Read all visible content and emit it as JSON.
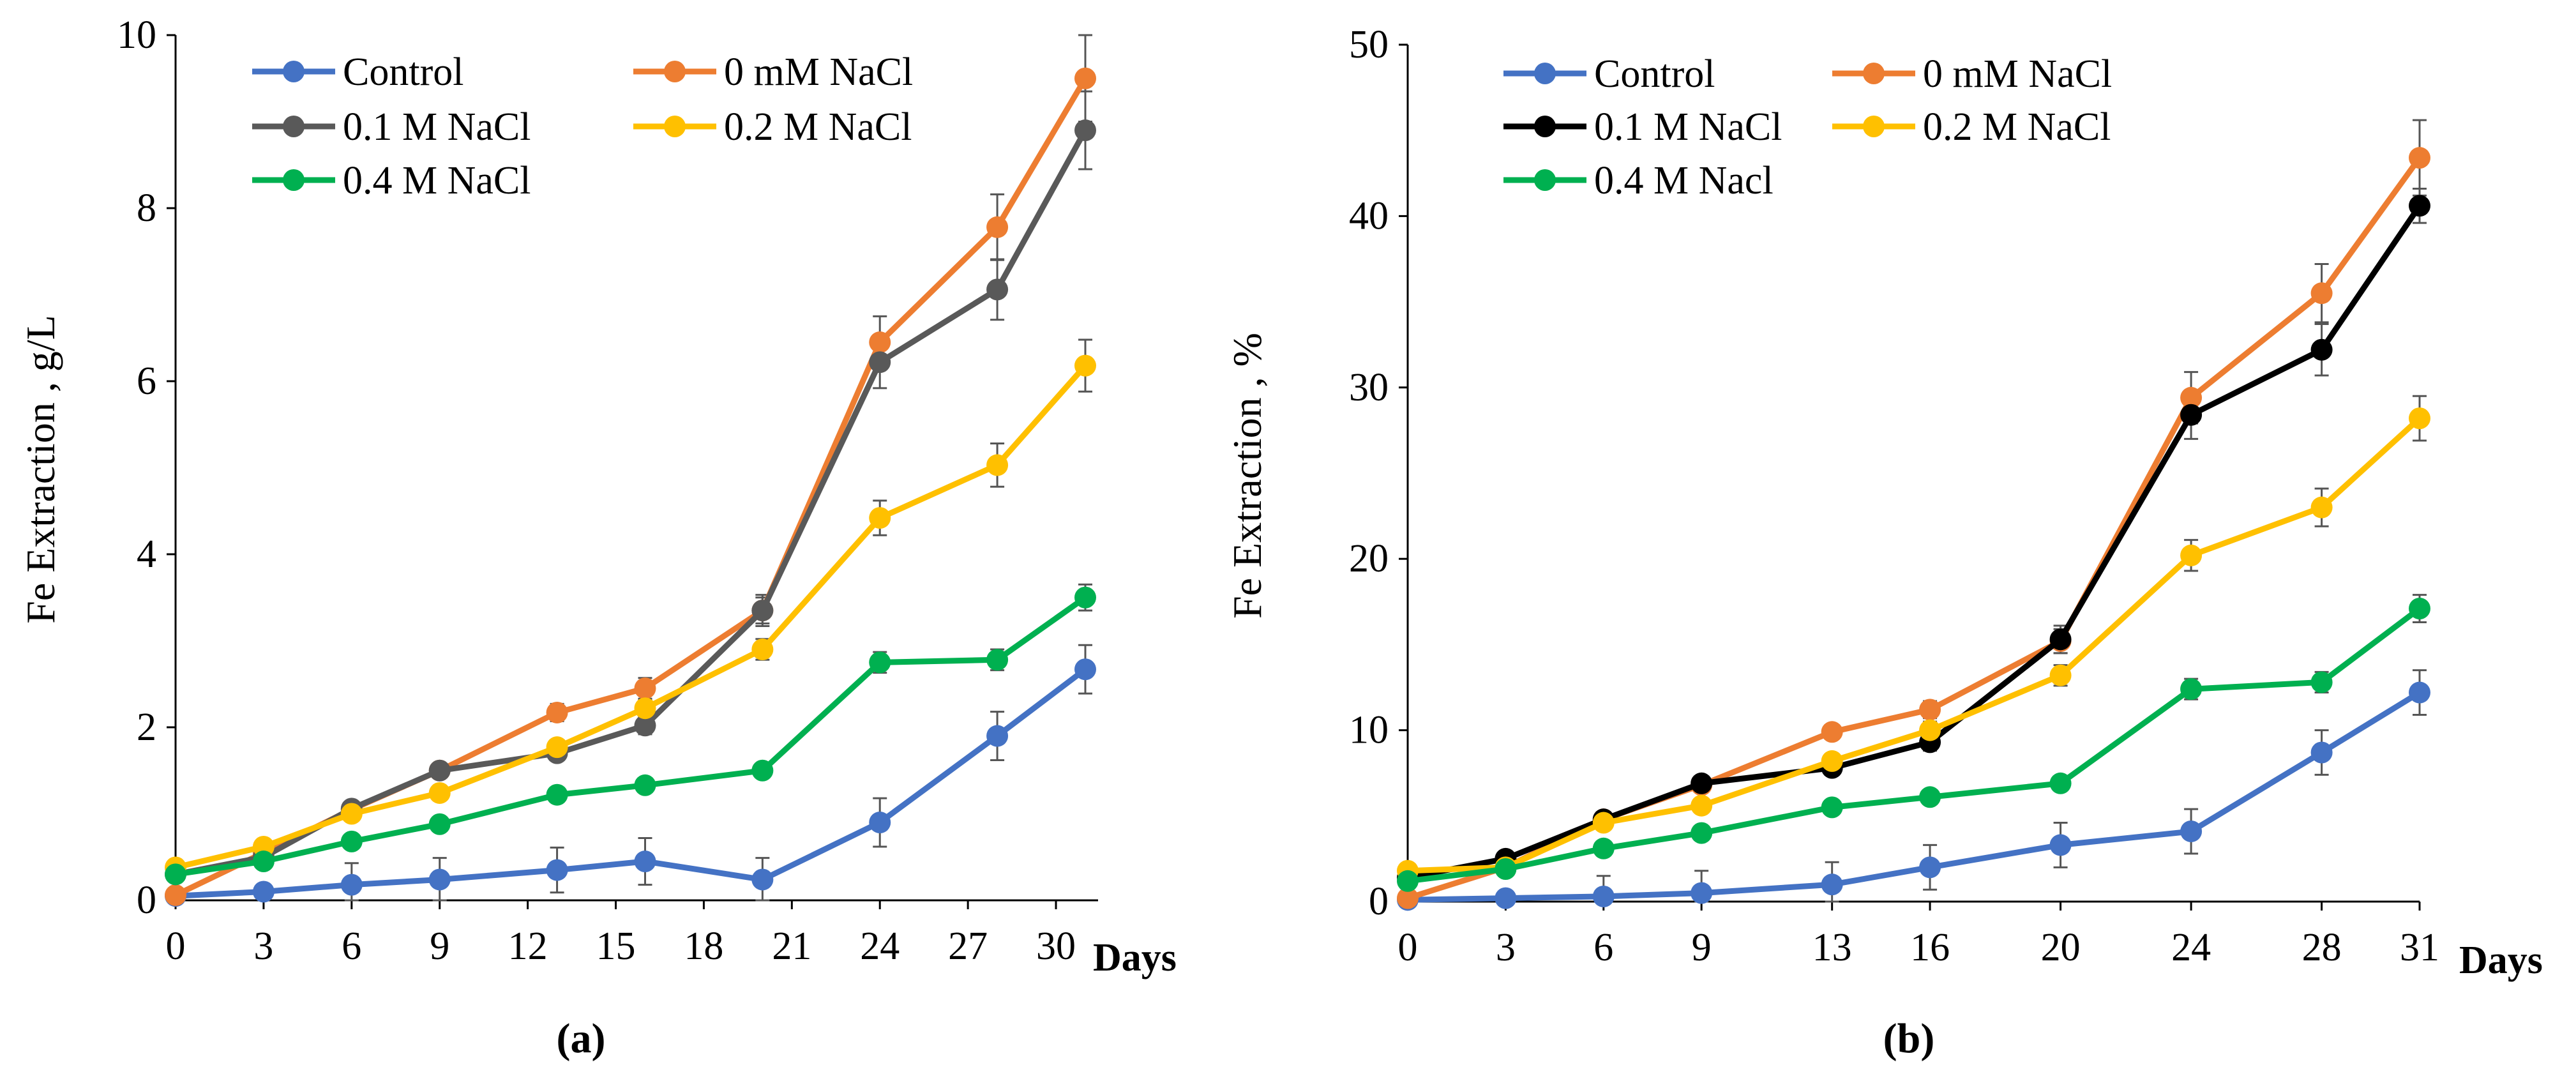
{
  "chart_data": [
    {
      "type": "line",
      "title": "",
      "panel_label": "(a)",
      "xlabel": "Days",
      "ylabel": "Fe Extraction , g/L",
      "xlim": [
        0,
        31
      ],
      "ylim": [
        0,
        10
      ],
      "xticks": [
        0,
        3,
        6,
        9,
        12,
        15,
        18,
        21,
        24,
        27,
        30
      ],
      "yticks": [
        0,
        2,
        4,
        6,
        8,
        10
      ],
      "x": [
        0,
        3,
        6,
        9,
        13,
        16,
        20,
        24,
        28,
        31
      ],
      "grid": false,
      "legend_position": "top-left",
      "series": [
        {
          "name": "Control",
          "color": "#4472C4",
          "values": [
            0.05,
            0.1,
            0.18,
            0.24,
            0.35,
            0.45,
            0.24,
            0.9,
            1.9,
            2.67
          ],
          "errors": [
            0.05,
            0.05,
            0.25,
            0.25,
            0.26,
            0.27,
            0.25,
            0.28,
            0.28,
            0.28
          ]
        },
        {
          "name": "0 mM NaCl",
          "color": "#ED7D31",
          "values": [
            0.06,
            0.55,
            1.05,
            1.5,
            2.17,
            2.45,
            3.35,
            6.45,
            7.78,
            9.5
          ],
          "errors": [
            0.05,
            0.06,
            0.06,
            0.07,
            0.1,
            0.12,
            0.15,
            0.3,
            0.38,
            0.5
          ]
        },
        {
          "name": "0.1 M NaCl",
          "color": "#595959",
          "values": [
            0.3,
            0.5,
            1.06,
            1.5,
            1.7,
            2.02,
            3.35,
            6.22,
            7.06,
            8.9
          ],
          "errors": [
            0.05,
            0.06,
            0.06,
            0.07,
            0.08,
            0.1,
            0.18,
            0.3,
            0.35,
            0.45
          ]
        },
        {
          "name": "0.2 M NaCl",
          "color": "#FFC000",
          "values": [
            0.38,
            0.62,
            1.0,
            1.24,
            1.77,
            2.22,
            2.9,
            4.42,
            5.03,
            6.18
          ],
          "errors": [
            0.05,
            0.05,
            0.06,
            0.06,
            0.08,
            0.1,
            0.12,
            0.2,
            0.25,
            0.3
          ]
        },
        {
          "name": "0.4 M NaCl",
          "color": "#00B050",
          "values": [
            0.3,
            0.45,
            0.68,
            0.88,
            1.22,
            1.33,
            1.5,
            2.75,
            2.78,
            3.5
          ],
          "errors": [
            0.05,
            0.05,
            0.06,
            0.06,
            0.06,
            0.07,
            0.07,
            0.12,
            0.12,
            0.15
          ]
        }
      ]
    },
    {
      "type": "line",
      "title": "",
      "panel_label": "(b)",
      "xlabel": "Days",
      "ylabel": "Fe Extraction , %",
      "xlim": [
        0,
        31
      ],
      "ylim": [
        0,
        50
      ],
      "xticks": [
        0,
        3,
        6,
        9,
        13,
        16,
        20,
        24,
        28,
        31
      ],
      "yticks": [
        0,
        10,
        20,
        30,
        40,
        50
      ],
      "x": [
        0,
        3,
        6,
        9,
        13,
        16,
        20,
        24,
        28,
        31
      ],
      "grid": false,
      "legend_position": "top-left",
      "series": [
        {
          "name": "Control",
          "color": "#4472C4",
          "values": [
            0.1,
            0.2,
            0.3,
            0.5,
            1.0,
            2.0,
            3.3,
            4.1,
            8.7,
            12.2
          ],
          "errors": [
            0.1,
            0.2,
            1.2,
            1.3,
            1.3,
            1.3,
            1.3,
            1.3,
            1.3,
            1.3
          ]
        },
        {
          "name": "0 mM NaCl",
          "color": "#ED7D31",
          "values": [
            0.2,
            2.0,
            4.8,
            6.8,
            9.9,
            11.2,
            15.2,
            29.4,
            35.5,
            43.4
          ],
          "errors": [
            0.2,
            0.2,
            0.3,
            0.3,
            0.4,
            0.5,
            0.7,
            1.5,
            1.7,
            2.2
          ]
        },
        {
          "name": "0.1 M NaCl",
          "color": "#000000",
          "values": [
            1.4,
            2.5,
            4.8,
            6.9,
            7.8,
            9.3,
            15.3,
            28.4,
            32.2,
            40.6
          ],
          "errors": [
            0.2,
            0.2,
            0.3,
            0.3,
            0.4,
            0.5,
            0.8,
            1.4,
            1.5,
            1.0
          ]
        },
        {
          "name": "0.2 M NaCl",
          "color": "#FFC000",
          "values": [
            1.8,
            2.0,
            4.6,
            5.6,
            8.2,
            10.0,
            13.2,
            20.2,
            23.0,
            28.2
          ],
          "errors": [
            0.2,
            0.2,
            0.3,
            0.3,
            0.4,
            0.5,
            0.6,
            0.9,
            1.1,
            1.3
          ]
        },
        {
          "name": "0.4 M Nacl",
          "color": "#00B050",
          "values": [
            1.2,
            1.9,
            3.1,
            4.0,
            5.5,
            6.1,
            6.9,
            12.4,
            12.8,
            17.1
          ],
          "errors": [
            0.2,
            0.2,
            0.2,
            0.2,
            0.3,
            0.3,
            0.3,
            0.6,
            0.6,
            0.8
          ]
        }
      ]
    }
  ]
}
